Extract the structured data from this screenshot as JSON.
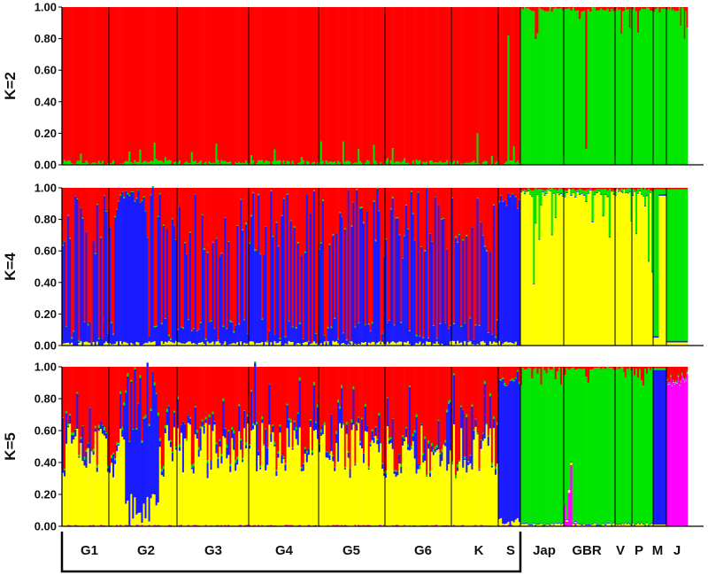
{
  "chart_data": {
    "type": "bar",
    "stacked": true,
    "y_ticks": [
      "0.00",
      "0.20",
      "0.40",
      "0.60",
      "0.80",
      "1.00"
    ],
    "ylim": [
      0,
      1
    ],
    "colors": {
      "red": "#ff0000",
      "green": "#00e600",
      "blue": "#1a1aff",
      "yellow": "#ffff00",
      "magenta": "#ff00ff"
    },
    "populations": [
      {
        "label": "G1",
        "n": 26,
        "group": "A"
      },
      {
        "label": "G2",
        "n": 38,
        "group": "A"
      },
      {
        "label": "G3",
        "n": 41,
        "group": "A"
      },
      {
        "label": "G4",
        "n": 39,
        "group": "A"
      },
      {
        "label": "G5",
        "n": 39,
        "group": "A"
      },
      {
        "label": "G6",
        "n": 39,
        "group": "A"
      },
      {
        "label": "K",
        "n": 26,
        "group": "A"
      },
      {
        "label": "S",
        "n": 12,
        "group": "A"
      },
      {
        "label": "Jap",
        "n": 24,
        "group": "B"
      },
      {
        "label": "GBR",
        "n": 24,
        "group": "B"
      },
      {
        "label": "V",
        "n": 12,
        "group": "B"
      },
      {
        "label": "P",
        "n": 12,
        "group": "B"
      },
      {
        "label": "M",
        "n": 7,
        "group": "C"
      },
      {
        "label": "J",
        "n": 17,
        "group": "D"
      }
    ],
    "panels": [
      {
        "k_label": "K=2",
        "clusters": [
          "green",
          "red"
        ]
      },
      {
        "k_label": "K=4",
        "clusters": [
          "yellow",
          "blue",
          "green",
          "red"
        ]
      },
      {
        "k_label": "K=5",
        "clusters": [
          "magenta",
          "yellow",
          "blue",
          "green",
          "red"
        ]
      }
    ]
  }
}
